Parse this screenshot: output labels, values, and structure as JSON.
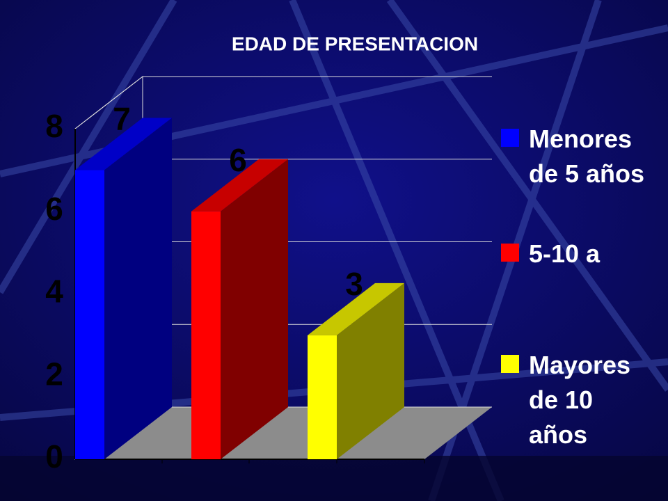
{
  "chart_data": {
    "type": "bar3d",
    "title": "EDAD DE PRESENTACION",
    "categories": [
      null
    ],
    "series": [
      {
        "name": "Menores de 5 años",
        "color": "#0000ff",
        "values": [
          7
        ]
      },
      {
        "name": "5-10 a",
        "color": "#ff0000",
        "values": [
          6
        ]
      },
      {
        "name": "Mayores de 10 años",
        "color": "#ffff00",
        "values": [
          3
        ]
      }
    ],
    "ylim": [
      0,
      8
    ],
    "yticks": [
      0,
      2,
      4,
      6,
      8
    ],
    "grid": true,
    "legend": "right"
  }
}
